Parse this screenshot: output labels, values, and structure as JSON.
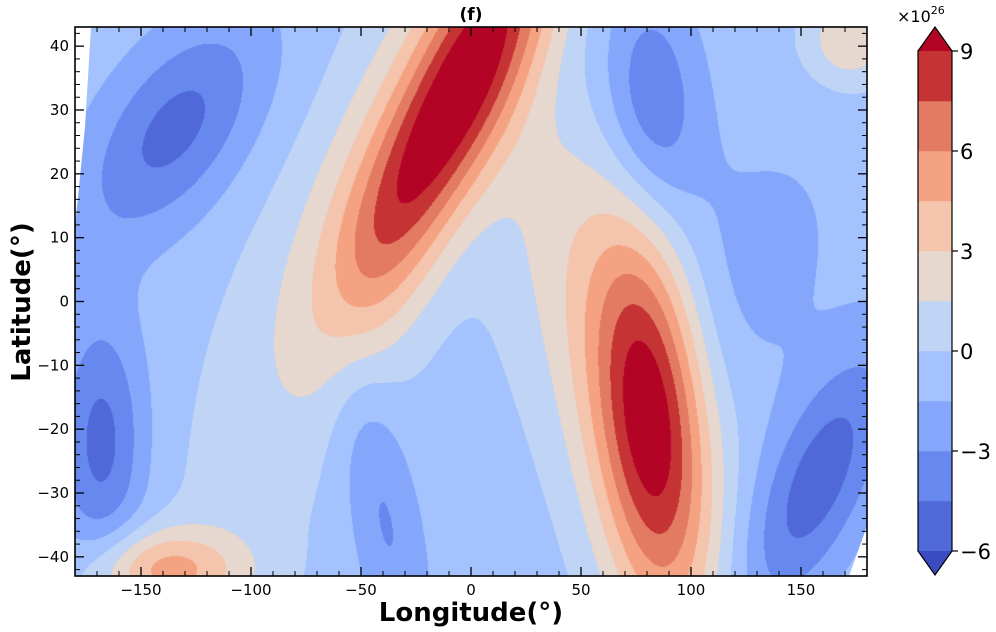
{
  "chart_data": {
    "type": "heatmap",
    "subtype": "filled-contour",
    "title": "(f)",
    "xlabel": "Longitude(°)",
    "ylabel": "Latitude(°)",
    "xlim": [
      -180,
      180
    ],
    "ylim": [
      -43,
      43
    ],
    "xticks": [
      -150,
      -100,
      -50,
      0,
      50,
      100,
      150
    ],
    "yticks": [
      -40,
      -30,
      -20,
      -10,
      0,
      10,
      20,
      30,
      40
    ],
    "xtick_labels": [
      "−150",
      "−100",
      "−50",
      "0",
      "50",
      "100",
      "150"
    ],
    "ytick_labels": [
      "−40",
      "−30",
      "−20",
      "−10",
      "0",
      "10",
      "20",
      "30",
      "40"
    ],
    "colorbar": {
      "levels": [
        -6,
        -4.5,
        -3,
        -1.5,
        0,
        1.5,
        3,
        4.5,
        6,
        7.5,
        9
      ],
      "tick_values": [
        -6,
        -3,
        0,
        3,
        6,
        9
      ],
      "tick_labels": [
        "−6",
        "−3",
        "0",
        "3",
        "6",
        "9"
      ],
      "multiplier": "×10",
      "multiplier_exponent": "26",
      "extend": "both",
      "colors": [
        "#3b4cc0",
        "#4f69d9",
        "#6788ee",
        "#84a7fc",
        "#a3c2fe",
        "#c0d4f5",
        "#e6d7cf",
        "#f4c4ac",
        "#f4a282",
        "#e27b62",
        "#c53334",
        "#b40426"
      ]
    },
    "field_features": [
      {
        "kind": "max",
        "lon": 0,
        "lat": 40,
        "value": 8.5
      },
      {
        "kind": "max",
        "lon": 83,
        "lat": -17,
        "value": 8.5
      },
      {
        "kind": "min",
        "lon": -125,
        "lat": 30,
        "value": -5.2
      },
      {
        "kind": "min",
        "lon": 85,
        "lat": 30,
        "value": -4.8
      },
      {
        "kind": "min",
        "lon": -165,
        "lat": -22,
        "value": -5.0
      },
      {
        "kind": "min",
        "lon": 160,
        "lat": -30,
        "value": -5.3
      },
      {
        "kind": "min",
        "lon": -40,
        "lat": -33,
        "value": -3.4
      },
      {
        "kind": "max",
        "lon": -140,
        "lat": -40,
        "value": 5.0
      },
      {
        "kind": "max",
        "lon": 170,
        "lat": 40,
        "value": 3.5
      }
    ]
  }
}
